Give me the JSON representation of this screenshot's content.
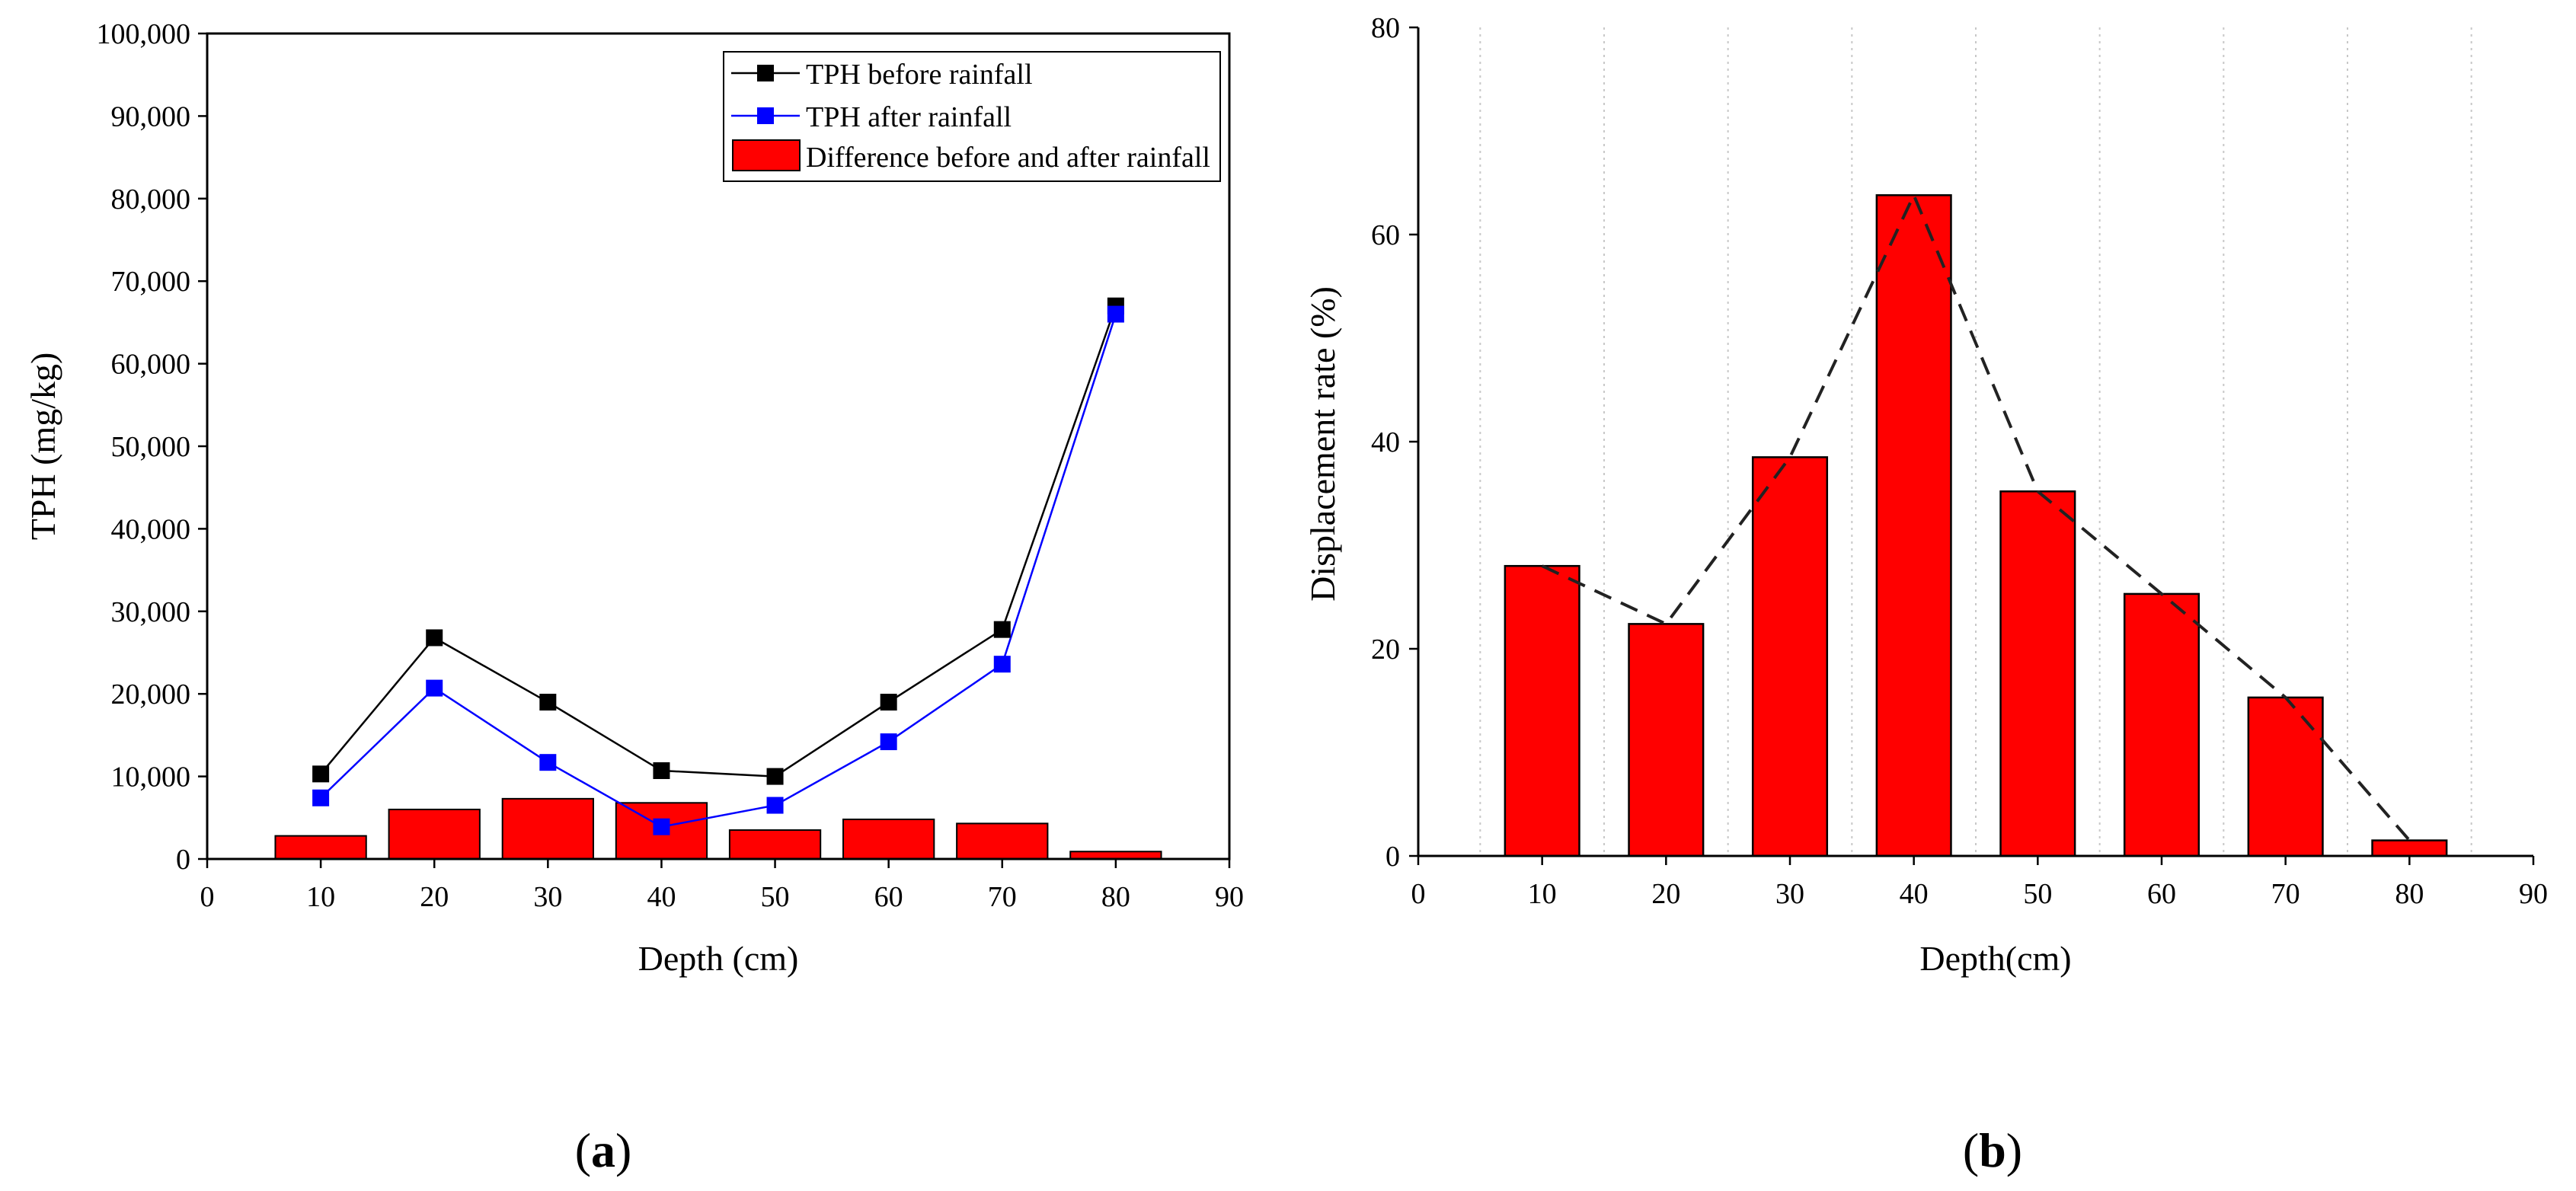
{
  "chart_data": [
    {
      "panel": "(a)",
      "panel_letter": "a",
      "type": "bar+line",
      "xlabel": "Depth (cm)",
      "ylabel": "TPH (mg/kg)",
      "xlim": [
        0,
        90
      ],
      "ylim": [
        0,
        100000
      ],
      "x_ticks": [
        0,
        10,
        20,
        30,
        40,
        50,
        60,
        70,
        80,
        90
      ],
      "x_tick_labels": [
        "0",
        "10",
        "20",
        "30",
        "40",
        "50",
        "60",
        "70",
        "80",
        "90"
      ],
      "y_ticks": [
        0,
        10000,
        20000,
        30000,
        40000,
        50000,
        60000,
        70000,
        80000,
        90000,
        100000
      ],
      "y_tick_labels": [
        "0",
        "10,000",
        "20,000",
        "30,000",
        "40,000",
        "50,000",
        "60,000",
        "70,000",
        "80,000",
        "90,000",
        "100,000"
      ],
      "x": [
        10,
        20,
        30,
        40,
        50,
        60,
        70,
        80
      ],
      "series": [
        {
          "name": "TPH before rainfall",
          "kind": "line",
          "color": "#000000",
          "values": [
            10300,
            26800,
            19000,
            10700,
            10000,
            19000,
            27800,
            67000
          ]
        },
        {
          "name": "TPH after rainfall",
          "kind": "line",
          "color": "#0000ff",
          "values": [
            7400,
            20700,
            11700,
            3900,
            6500,
            14200,
            23600,
            66000
          ]
        },
        {
          "name": "Difference before and after rainfall",
          "kind": "bar",
          "color": "#ff0000",
          "values": [
            2800,
            6000,
            7300,
            6800,
            3500,
            4800,
            4300,
            900
          ]
        }
      ],
      "legend_position": "top-right"
    },
    {
      "panel": "(b)",
      "panel_letter": "b",
      "type": "bar+line",
      "xlabel": "Depth(cm)",
      "ylabel": "Displacement rate (%)",
      "xlim": [
        0,
        90
      ],
      "ylim": [
        0,
        80
      ],
      "x_ticks": [
        0,
        10,
        20,
        30,
        40,
        50,
        60,
        70,
        80,
        90
      ],
      "x_tick_labels": [
        "0",
        "10",
        "20",
        "30",
        "40",
        "50",
        "60",
        "70",
        "80",
        "90"
      ],
      "y_ticks": [
        0,
        20,
        40,
        60,
        80
      ],
      "y_tick_labels": [
        "0",
        "20",
        "40",
        "60",
        "80"
      ],
      "x": [
        10,
        20,
        30,
        40,
        50,
        60,
        70,
        80
      ],
      "series": [
        {
          "name": "Displacement rate",
          "kind": "bar",
          "color": "#ff0000",
          "values": [
            28,
            22.4,
            38.5,
            63.8,
            35.2,
            25.3,
            15.3,
            1.5
          ]
        },
        {
          "name": "Trend",
          "kind": "dashed-line",
          "color": "#222222",
          "values": [
            28,
            22.4,
            38.5,
            63.8,
            35.2,
            25.3,
            15.3,
            1.5
          ]
        }
      ],
      "grid": "vertical-dotted"
    }
  ]
}
